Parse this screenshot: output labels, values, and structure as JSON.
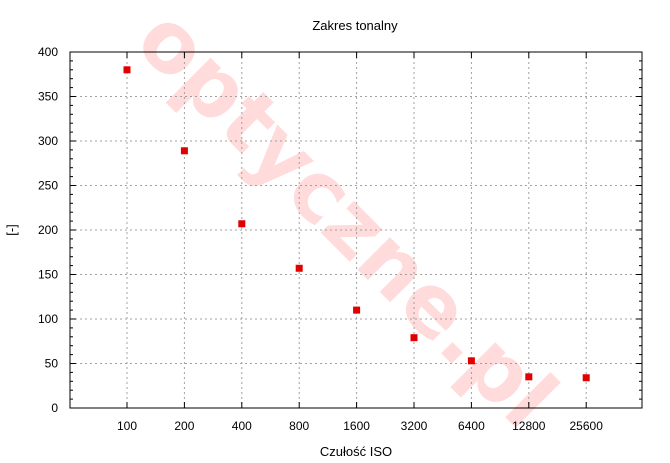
{
  "chart_data": {
    "type": "scatter",
    "title": "Zakres tonalny",
    "xlabel": "Czułość ISO",
    "ylabel": "[-]",
    "categories": [
      "100",
      "200",
      "400",
      "800",
      "1600",
      "3200",
      "6400",
      "12800",
      "25600"
    ],
    "values": [
      380,
      289,
      207,
      157,
      110,
      79,
      53,
      35,
      34
    ],
    "ylim": [
      0,
      400
    ],
    "yticks": [
      0,
      50,
      100,
      150,
      200,
      250,
      300,
      350,
      400
    ],
    "grid": true,
    "legend": "none",
    "marker_color": "#e00000",
    "watermark": "optyczne.pl",
    "watermark_color": "#ff8080"
  }
}
